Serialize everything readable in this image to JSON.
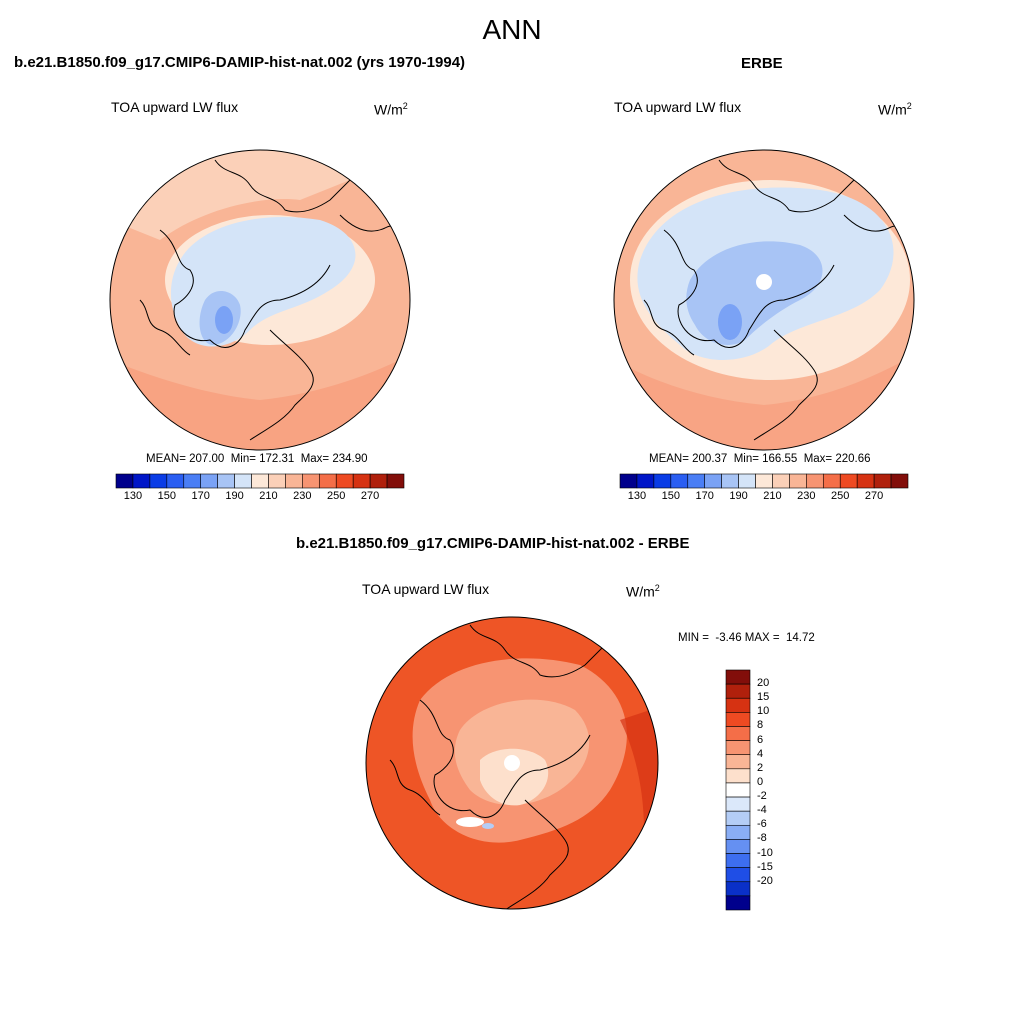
{
  "figure": {
    "title": "ANN"
  },
  "panels": [
    {
      "id": "model",
      "heading": "b.e21.B1850.f09_g17.CMIP6-DAMIP-hist-nat.002 (yrs 1970-1994)",
      "variable": "TOA upward LW flux",
      "units_base": "W/m",
      "units_exp": "2",
      "stats": "MEAN= 207.00  Min= 172.31  Max= 234.90"
    },
    {
      "id": "obs",
      "heading": "ERBE",
      "variable": "TOA upward LW flux",
      "units_base": "W/m",
      "units_exp": "2",
      "stats": "MEAN= 200.37  Min= 166.55  Max= 220.66"
    },
    {
      "id": "diff",
      "heading": "b.e21.B1850.f09_g17.CMIP6-DAMIP-hist-nat.002 - ERBE",
      "variable": "TOA upward LW flux",
      "units_base": "W/m",
      "units_exp": "2",
      "stats": "MIN =  -3.46 MAX =  14.72"
    }
  ],
  "colorbar_abs": {
    "colors": [
      "#00008c",
      "#0016c8",
      "#0a3ce6",
      "#2a5ef2",
      "#4a7ef5",
      "#7aa2f5",
      "#a8c4f5",
      "#d4e4f8",
      "#fde8d8",
      "#fbd0b8",
      "#f9b596",
      "#f79472",
      "#f46e48",
      "#ee4a22",
      "#d63212",
      "#b0200c",
      "#820e0a"
    ],
    "tick_labels": [
      "130",
      "150",
      "170",
      "190",
      "210",
      "230",
      "250",
      "270"
    ]
  },
  "colorbar_diff": {
    "colors": [
      "#820e0a",
      "#b0200c",
      "#d63212",
      "#ee4a22",
      "#f46e48",
      "#f79472",
      "#f9b596",
      "#fde0cc",
      "#ffffff",
      "#dbe8fa",
      "#b4cdf6",
      "#8aaef5",
      "#6590f2",
      "#3d6ef0",
      "#1f4ee6",
      "#0a30c8",
      "#00008c"
    ],
    "tick_labels": [
      "20",
      "15",
      "10",
      "8",
      "6",
      "4",
      "2",
      "0",
      "-2",
      "-4",
      "-6",
      "-8",
      "-10",
      "-15",
      "-20"
    ]
  },
  "map_fill_colors": {
    "ocean_warm": "#f9b596",
    "pale": "#fde8d8",
    "light_blue": "#d4e4f8",
    "mid_blue": "#a8c4f5",
    "dark_blue": "#7aa2f5",
    "diff_base": "#ee5526",
    "diff_light": "#f9b596",
    "diff_pale": "#fde0cc"
  }
}
